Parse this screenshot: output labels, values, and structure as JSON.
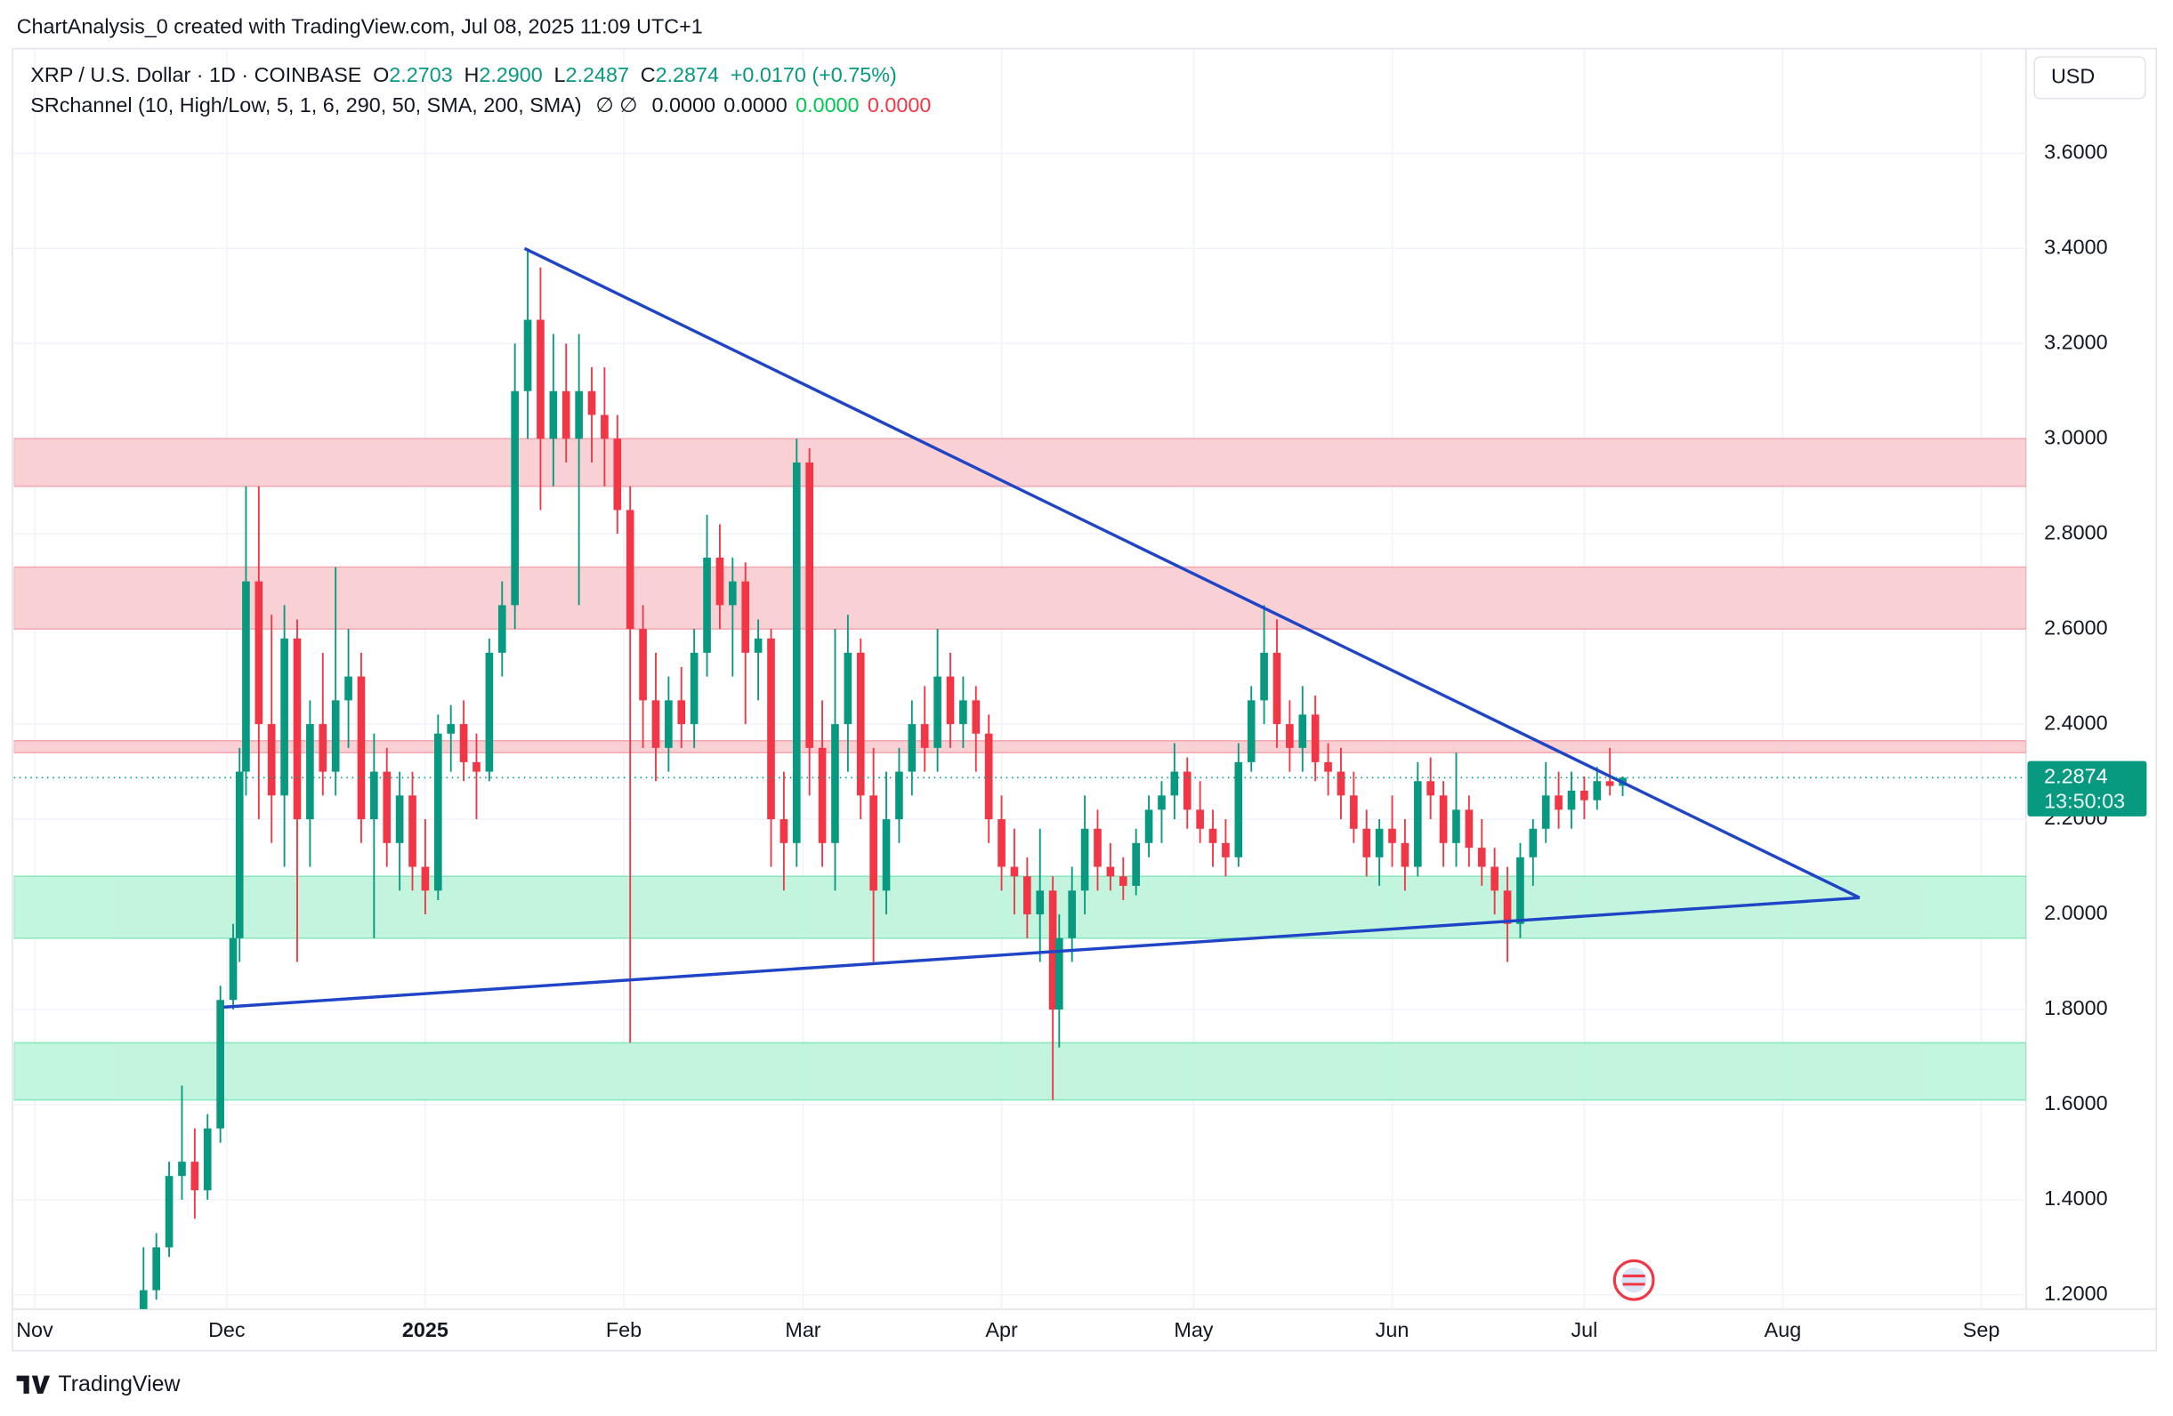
{
  "header": "ChartAnalysis_0 created with TradingView.com, Jul 08, 2025 11:09 UTC+1",
  "footer": "TradingView",
  "chart_data": {
    "type": "candlestick",
    "legend": {
      "symbol": "XRP / U.S. Dollar · 1D · COINBASE",
      "o": "O",
      "open": "2.2703",
      "h": "H",
      "high": "2.2900",
      "l": "L",
      "low": "2.2487",
      "c": "C",
      "close": "2.2874",
      "change": "+0.0170 (+0.75%)"
    },
    "indicator": {
      "name": "SRchannel (10, High/Low, 5, 1, 6, 290, 50, SMA, 200, SMA)",
      "symbols": "∅ ∅",
      "values": [
        "0.0000",
        "0.0000",
        "0.0000",
        "0.0000"
      ],
      "colors": [
        "#131722",
        "#131722",
        "#00c853",
        "#f23645"
      ]
    },
    "currency": "USD",
    "price_tag": {
      "value": 2.2874,
      "countdown": "13:50:03",
      "color": "#089981"
    },
    "up_color": "#089981",
    "down_color": "#f23645",
    "trend_color": "#1f45c7",
    "resistance_color": "#f9cdd1",
    "resistance_border": "#f2a0a8",
    "support_color": "#bdf5db",
    "support_border": "#7fe3b4",
    "zones": [
      {
        "kind": "resistance",
        "from": 2.9,
        "to": 3.0
      },
      {
        "kind": "resistance",
        "from": 2.6,
        "to": 2.73
      },
      {
        "kind": "resistance",
        "from": 2.34,
        "to": 2.365
      },
      {
        "kind": "support",
        "from": 1.95,
        "to": 2.08
      },
      {
        "kind": "support",
        "from": 1.61,
        "to": 1.73
      }
    ],
    "trendlines": [
      [
        [
          76.5,
          3.4
        ],
        [
          285,
          2.035
        ]
      ],
      [
        [
          29.5,
          1.805
        ],
        [
          285,
          2.035
        ]
      ]
    ],
    "xlim": [
      -3.25,
      311
    ],
    "ylim": [
      1.17,
      3.82
    ],
    "xticks": [
      {
        "value": 0,
        "label": "Nov"
      },
      {
        "value": 30,
        "label": "Dec"
      },
      {
        "value": 61,
        "label": "2025"
      },
      {
        "value": 92,
        "label": "Feb"
      },
      {
        "value": 120,
        "label": "Mar"
      },
      {
        "value": 151,
        "label": "Apr"
      },
      {
        "value": 181,
        "label": "May"
      },
      {
        "value": 212,
        "label": "Jun"
      },
      {
        "value": 242,
        "label": "Jul"
      },
      {
        "value": 273,
        "label": "Aug"
      },
      {
        "value": 304,
        "label": "Sep"
      }
    ],
    "yticks": [
      {
        "value": 1.2,
        "label": "1.2000"
      },
      {
        "value": 1.4,
        "label": "1.4000"
      },
      {
        "value": 1.6,
        "label": "1.6000"
      },
      {
        "value": 1.8,
        "label": "1.8000"
      },
      {
        "value": 2.0,
        "label": "2.0000"
      },
      {
        "value": 2.2,
        "label": "2.2000"
      },
      {
        "value": 2.4,
        "label": "2.4000"
      },
      {
        "value": 2.6,
        "label": "2.6000"
      },
      {
        "value": 2.8,
        "label": "2.8000"
      },
      {
        "value": 3.0,
        "label": "3.0000"
      },
      {
        "value": 3.2,
        "label": "3.2000"
      },
      {
        "value": 3.4,
        "label": "3.4000"
      },
      {
        "value": 3.6,
        "label": "3.6000"
      }
    ],
    "grid": true,
    "candles": [
      [
        17,
        1.17,
        1.3,
        1.15,
        1.21
      ],
      [
        19,
        1.21,
        1.33,
        1.19,
        1.3
      ],
      [
        21,
        1.3,
        1.48,
        1.28,
        1.45
      ],
      [
        23,
        1.45,
        1.64,
        1.4,
        1.48
      ],
      [
        25,
        1.48,
        1.55,
        1.36,
        1.42
      ],
      [
        27,
        1.42,
        1.58,
        1.4,
        1.55
      ],
      [
        29,
        1.55,
        1.85,
        1.52,
        1.82
      ],
      [
        31,
        1.82,
        1.98,
        1.8,
        1.95
      ],
      [
        32,
        1.95,
        2.35,
        1.9,
        2.3
      ],
      [
        33,
        2.3,
        2.9,
        2.25,
        2.7
      ],
      [
        35,
        2.7,
        2.9,
        2.2,
        2.4
      ],
      [
        37,
        2.4,
        2.63,
        2.15,
        2.25
      ],
      [
        39,
        2.25,
        2.65,
        2.1,
        2.58
      ],
      [
        41,
        2.58,
        2.62,
        1.9,
        2.2
      ],
      [
        43,
        2.2,
        2.45,
        2.1,
        2.4
      ],
      [
        45,
        2.4,
        2.55,
        2.25,
        2.3
      ],
      [
        47,
        2.3,
        2.73,
        2.25,
        2.45
      ],
      [
        49,
        2.45,
        2.6,
        2.35,
        2.5
      ],
      [
        51,
        2.5,
        2.55,
        2.15,
        2.2
      ],
      [
        53,
        2.2,
        2.38,
        1.95,
        2.3
      ],
      [
        55,
        2.3,
        2.35,
        2.1,
        2.15
      ],
      [
        57,
        2.15,
        2.3,
        2.05,
        2.25
      ],
      [
        59,
        2.25,
        2.3,
        2.05,
        2.1
      ],
      [
        61,
        2.1,
        2.2,
        2.0,
        2.05
      ],
      [
        63,
        2.05,
        2.42,
        2.03,
        2.38
      ],
      [
        65,
        2.38,
        2.44,
        2.3,
        2.4
      ],
      [
        67,
        2.4,
        2.45,
        2.28,
        2.32
      ],
      [
        69,
        2.32,
        2.38,
        2.2,
        2.3
      ],
      [
        71,
        2.3,
        2.58,
        2.28,
        2.55
      ],
      [
        73,
        2.55,
        2.7,
        2.5,
        2.65
      ],
      [
        75,
        2.65,
        3.2,
        2.6,
        3.1
      ],
      [
        77,
        3.1,
        3.4,
        3.0,
        3.25
      ],
      [
        79,
        3.25,
        3.36,
        2.85,
        3.0
      ],
      [
        81,
        3.0,
        3.22,
        2.9,
        3.1
      ],
      [
        83,
        3.1,
        3.2,
        2.95,
        3.0
      ],
      [
        85,
        3.0,
        3.22,
        2.65,
        3.1
      ],
      [
        87,
        3.1,
        3.15,
        2.95,
        3.05
      ],
      [
        89,
        3.05,
        3.15,
        2.9,
        3.0
      ],
      [
        91,
        3.0,
        3.05,
        2.8,
        2.85
      ],
      [
        93,
        2.85,
        2.9,
        1.73,
        2.6
      ],
      [
        95,
        2.6,
        2.65,
        2.35,
        2.45
      ],
      [
        97,
        2.45,
        2.55,
        2.28,
        2.35
      ],
      [
        99,
        2.35,
        2.5,
        2.3,
        2.45
      ],
      [
        101,
        2.45,
        2.52,
        2.35,
        2.4
      ],
      [
        103,
        2.4,
        2.6,
        2.35,
        2.55
      ],
      [
        105,
        2.55,
        2.84,
        2.5,
        2.75
      ],
      [
        107,
        2.75,
        2.82,
        2.6,
        2.65
      ],
      [
        109,
        2.65,
        2.75,
        2.5,
        2.7
      ],
      [
        111,
        2.7,
        2.74,
        2.4,
        2.55
      ],
      [
        113,
        2.55,
        2.62,
        2.45,
        2.58
      ],
      [
        115,
        2.58,
        2.6,
        2.1,
        2.2
      ],
      [
        117,
        2.2,
        2.3,
        2.05,
        2.15
      ],
      [
        119,
        2.15,
        3.0,
        2.1,
        2.95
      ],
      [
        121,
        2.95,
        2.98,
        2.25,
        2.35
      ],
      [
        123,
        2.35,
        2.45,
        2.1,
        2.15
      ],
      [
        125,
        2.15,
        2.6,
        2.05,
        2.4
      ],
      [
        127,
        2.4,
        2.63,
        2.3,
        2.55
      ],
      [
        129,
        2.55,
        2.58,
        2.2,
        2.25
      ],
      [
        131,
        2.25,
        2.35,
        1.9,
        2.05
      ],
      [
        133,
        2.05,
        2.3,
        2.0,
        2.2
      ],
      [
        135,
        2.2,
        2.35,
        2.15,
        2.3
      ],
      [
        137,
        2.3,
        2.45,
        2.25,
        2.4
      ],
      [
        139,
        2.4,
        2.48,
        2.3,
        2.35
      ],
      [
        141,
        2.35,
        2.6,
        2.3,
        2.5
      ],
      [
        143,
        2.5,
        2.55,
        2.35,
        2.4
      ],
      [
        145,
        2.4,
        2.5,
        2.35,
        2.45
      ],
      [
        147,
        2.45,
        2.48,
        2.3,
        2.38
      ],
      [
        149,
        2.38,
        2.42,
        2.15,
        2.2
      ],
      [
        151,
        2.2,
        2.25,
        2.05,
        2.1
      ],
      [
        153,
        2.1,
        2.18,
        2.0,
        2.08
      ],
      [
        155,
        2.08,
        2.12,
        1.95,
        2.0
      ],
      [
        157,
        2.0,
        2.18,
        1.9,
        2.05
      ],
      [
        159,
        2.05,
        2.08,
        1.61,
        1.8
      ],
      [
        160,
        1.8,
        2.0,
        1.72,
        1.95
      ],
      [
        162,
        1.95,
        2.1,
        1.9,
        2.05
      ],
      [
        164,
        2.05,
        2.25,
        2.0,
        2.18
      ],
      [
        166,
        2.18,
        2.22,
        2.05,
        2.1
      ],
      [
        168,
        2.1,
        2.15,
        2.05,
        2.08
      ],
      [
        170,
        2.08,
        2.12,
        2.03,
        2.06
      ],
      [
        172,
        2.06,
        2.18,
        2.04,
        2.15
      ],
      [
        174,
        2.15,
        2.25,
        2.12,
        2.22
      ],
      [
        176,
        2.22,
        2.28,
        2.15,
        2.25
      ],
      [
        178,
        2.25,
        2.36,
        2.2,
        2.3
      ],
      [
        180,
        2.3,
        2.33,
        2.18,
        2.22
      ],
      [
        182,
        2.22,
        2.28,
        2.15,
        2.18
      ],
      [
        184,
        2.18,
        2.22,
        2.1,
        2.15
      ],
      [
        186,
        2.15,
        2.2,
        2.08,
        2.12
      ],
      [
        188,
        2.12,
        2.36,
        2.1,
        2.32
      ],
      [
        190,
        2.32,
        2.48,
        2.3,
        2.45
      ],
      [
        192,
        2.45,
        2.65,
        2.4,
        2.55
      ],
      [
        194,
        2.55,
        2.62,
        2.35,
        2.4
      ],
      [
        196,
        2.4,
        2.45,
        2.3,
        2.35
      ],
      [
        198,
        2.35,
        2.48,
        2.3,
        2.42
      ],
      [
        200,
        2.42,
        2.46,
        2.28,
        2.32
      ],
      [
        202,
        2.32,
        2.36,
        2.25,
        2.3
      ],
      [
        204,
        2.3,
        2.35,
        2.2,
        2.25
      ],
      [
        206,
        2.25,
        2.3,
        2.15,
        2.18
      ],
      [
        208,
        2.18,
        2.22,
        2.08,
        2.12
      ],
      [
        210,
        2.12,
        2.2,
        2.06,
        2.18
      ],
      [
        212,
        2.18,
        2.25,
        2.1,
        2.15
      ],
      [
        214,
        2.15,
        2.2,
        2.05,
        2.1
      ],
      [
        216,
        2.1,
        2.32,
        2.08,
        2.28
      ],
      [
        218,
        2.28,
        2.33,
        2.2,
        2.25
      ],
      [
        220,
        2.25,
        2.28,
        2.1,
        2.15
      ],
      [
        222,
        2.15,
        2.34,
        2.1,
        2.22
      ],
      [
        224,
        2.22,
        2.25,
        2.1,
        2.14
      ],
      [
        226,
        2.14,
        2.2,
        2.06,
        2.1
      ],
      [
        228,
        2.1,
        2.14,
        2.0,
        2.05
      ],
      [
        230,
        2.05,
        2.1,
        1.9,
        1.98
      ],
      [
        232,
        1.98,
        2.15,
        1.95,
        2.12
      ],
      [
        234,
        2.12,
        2.2,
        2.06,
        2.18
      ],
      [
        236,
        2.18,
        2.32,
        2.15,
        2.25
      ],
      [
        238,
        2.25,
        2.3,
        2.18,
        2.22
      ],
      [
        240,
        2.22,
        2.3,
        2.18,
        2.26
      ],
      [
        242,
        2.26,
        2.29,
        2.2,
        2.24
      ],
      [
        244,
        2.24,
        2.31,
        2.22,
        2.28
      ],
      [
        246,
        2.28,
        2.35,
        2.25,
        2.27
      ],
      [
        248,
        2.2703,
        2.29,
        2.2487,
        2.2874
      ]
    ]
  }
}
